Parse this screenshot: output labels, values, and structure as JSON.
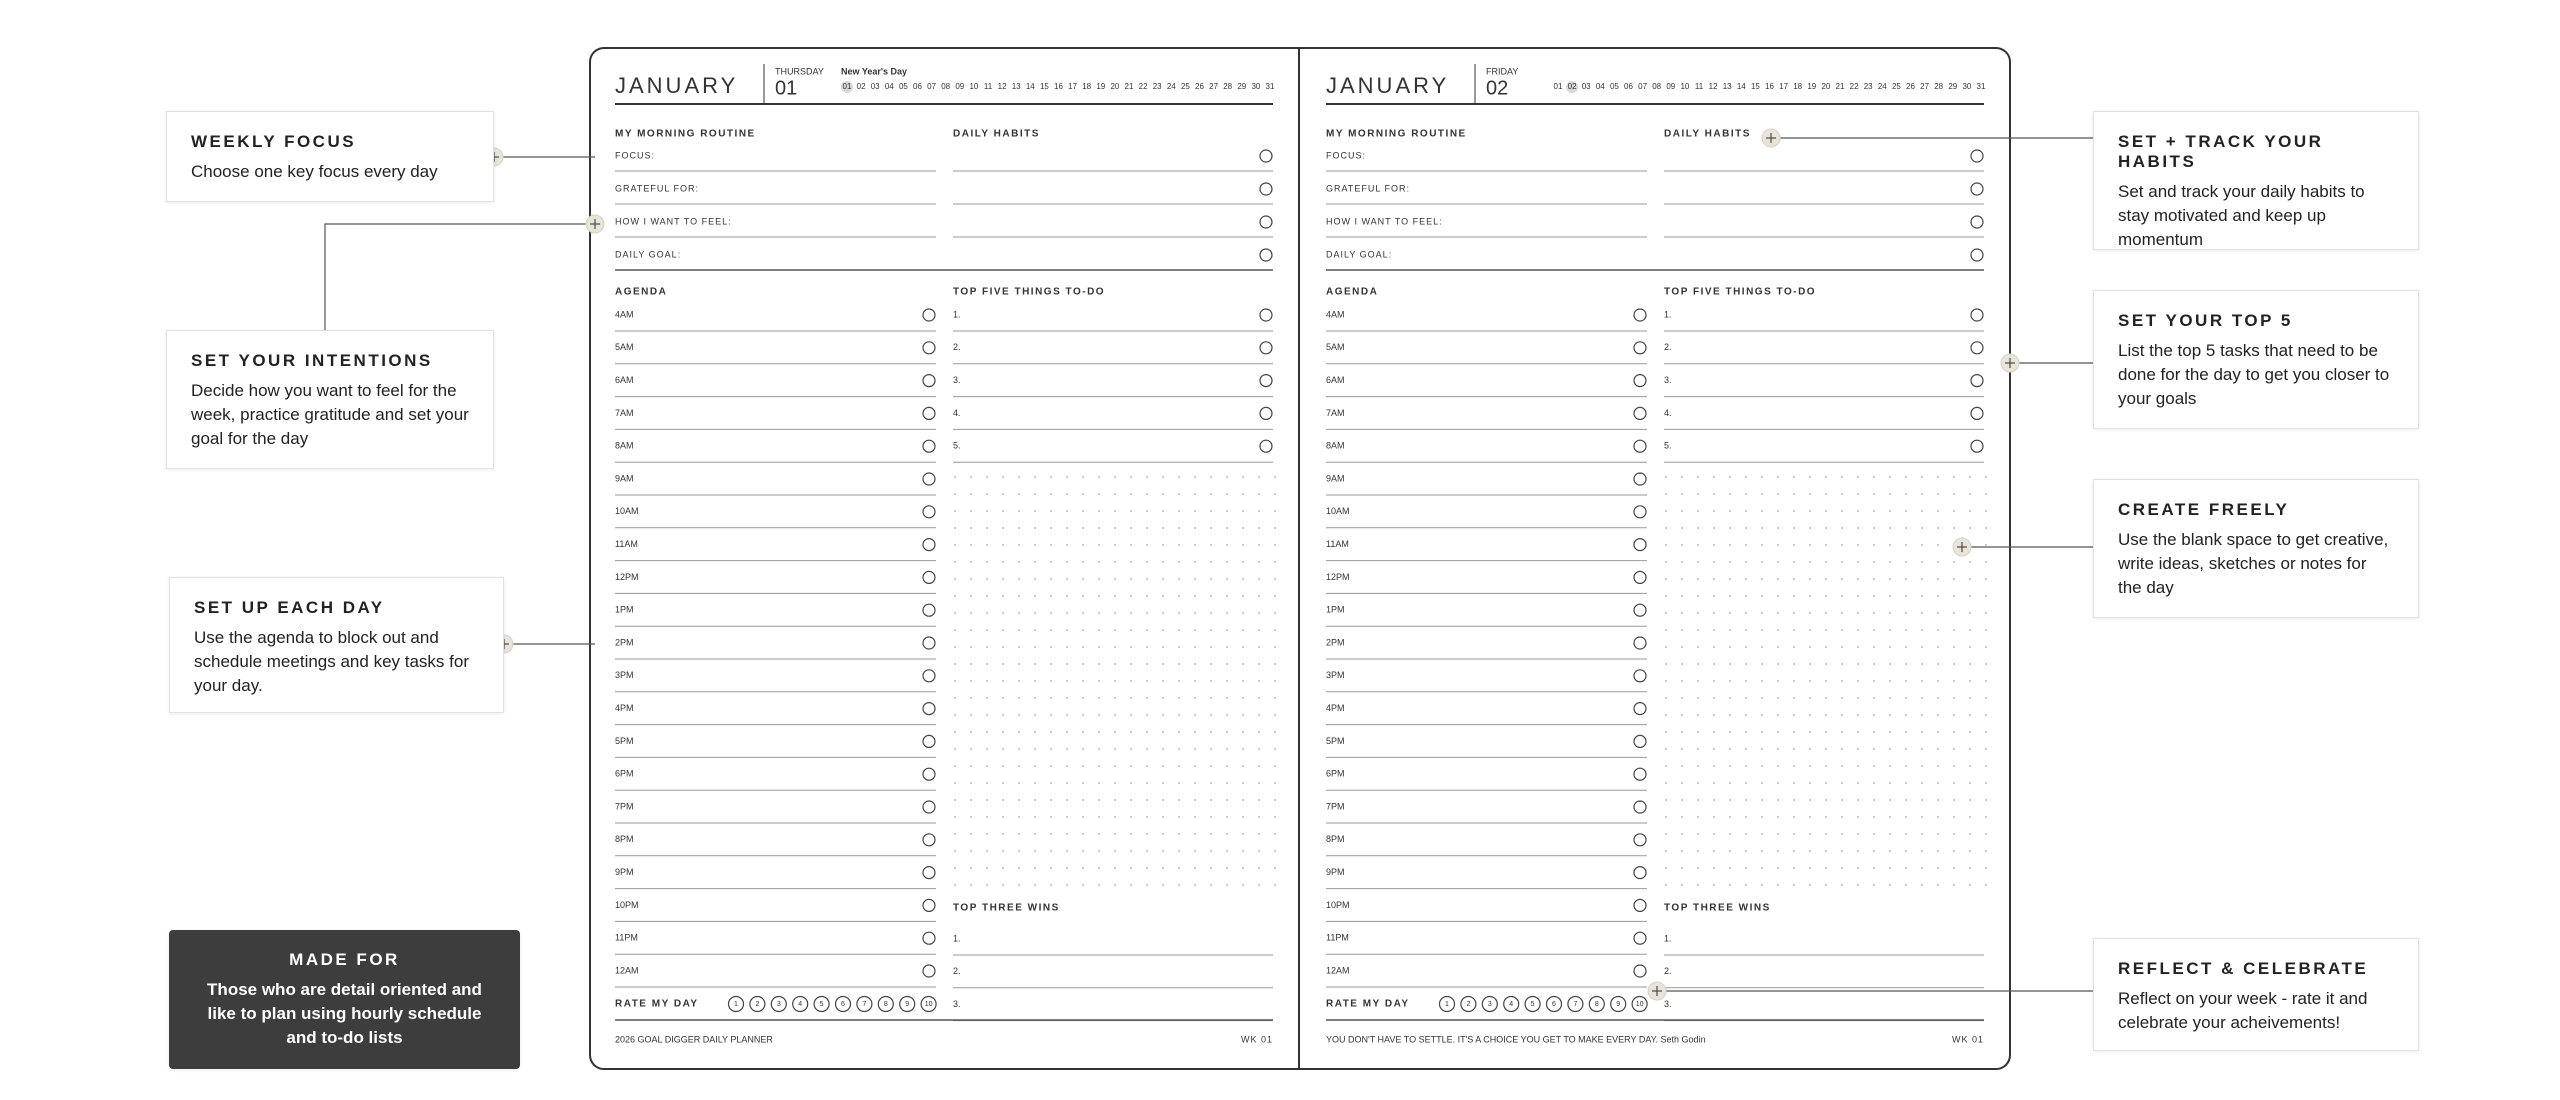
{
  "callouts": [
    {
      "title": "WEEKLY FOCUS",
      "text": "Choose one key focus every day"
    },
    {
      "title": "SET YOUR INTENTIONS",
      "text": "Decide how you want to feel for the week, practice gratitude and set your goal for the day"
    },
    {
      "title": "SET UP EACH DAY",
      "text": "Use the agenda to block out and schedule meetings and key tasks for your day."
    },
    {
      "title": "SET + TRACK YOUR HABITS",
      "text": "Set and track your daily habits to stay motivated and keep up momentum"
    },
    {
      "title": "SET YOUR TOP 5",
      "text": "List the top 5 tasks that need to be done for the day to get you closer to your goals"
    },
    {
      "title": "CREATE FREELY",
      "text": "Use the blank space to get creative, write ideas, sketches or notes for the day"
    },
    {
      "title": "REFLECT & CELEBRATE",
      "text": "Reflect on your week - rate it and celebrate your acheivements!"
    }
  ],
  "made_for": {
    "title": "MADE FOR",
    "text": "Those who are detail oriented and like to plan using hourly schedule and to-do lists"
  },
  "planner": {
    "labels": {
      "morning": "MY MORNING ROUTINE",
      "habits": "DAILY HABITS",
      "agenda": "AGENDA",
      "top_five": "TOP FIVE THINGS TO-DO",
      "wins": "TOP THREE WINS",
      "rate": "RATE MY DAY"
    },
    "routine": [
      "FOCUS:",
      "GRATEFUL FOR:",
      "HOW I WANT TO FEEL:",
      "DAILY GOAL:"
    ],
    "hours": [
      "4AM",
      "5AM",
      "6AM",
      "7AM",
      "8AM",
      "9AM",
      "10AM",
      "11AM",
      "12PM",
      "1PM",
      "2PM",
      "3PM",
      "4PM",
      "5PM",
      "6PM",
      "7PM",
      "8PM",
      "9PM",
      "10PM",
      "11PM",
      "12AM"
    ],
    "top_five": [
      "1.",
      "2.",
      "3.",
      "4.",
      "5."
    ],
    "wins": [
      "1.",
      "2.",
      "3."
    ],
    "ratings": [
      "1",
      "2",
      "3",
      "4",
      "5",
      "6",
      "7",
      "8",
      "9",
      "10"
    ],
    "dates": [
      "01",
      "02",
      "03",
      "04",
      "05",
      "06",
      "07",
      "08",
      "09",
      "10",
      "11",
      "12",
      "13",
      "14",
      "15",
      "16",
      "17",
      "18",
      "19",
      "20",
      "21",
      "22",
      "23",
      "24",
      "25",
      "26",
      "27",
      "28",
      "29",
      "30",
      "31"
    ]
  },
  "pages": [
    {
      "month": "JANUARY",
      "weekday": "THURSDAY",
      "day": "01",
      "holiday": "New Year's Day",
      "footer": "2026 GOAL DIGGER DAILY PLANNER",
      "week": "WK 01"
    },
    {
      "month": "JANUARY",
      "weekday": "FRIDAY",
      "day": "02",
      "footer": "YOU DON'T HAVE TO SETTLE. IT'S A CHOICE YOU GET TO MAKE EVERY DAY. Seth Godin",
      "week": "WK 01"
    }
  ]
}
